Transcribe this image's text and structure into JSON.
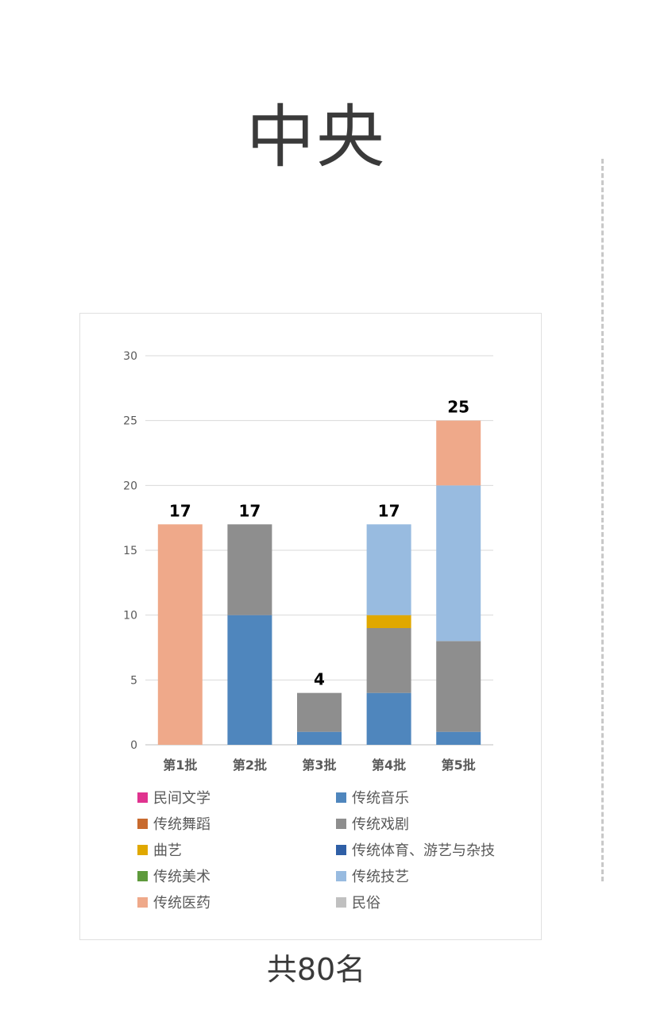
{
  "page": {
    "title": "中央",
    "footer": "共80名"
  },
  "chart_data": {
    "type": "bar",
    "stacked": true,
    "categories": [
      "第1批",
      "第2批",
      "第3批",
      "第4批",
      "第5批"
    ],
    "series": [
      {
        "name": "民间文学",
        "color": "#E0338F",
        "values": [
          0,
          0,
          0,
          0,
          0
        ]
      },
      {
        "name": "传统音乐",
        "color": "#4F86BD",
        "values": [
          0,
          10,
          1,
          4,
          1
        ]
      },
      {
        "name": "传统舞蹈",
        "color": "#C86A2E",
        "values": [
          0,
          0,
          0,
          0,
          0
        ]
      },
      {
        "name": "传统戏剧",
        "color": "#8E8E8E",
        "values": [
          0,
          7,
          3,
          5,
          7
        ]
      },
      {
        "name": "曲艺",
        "color": "#E0A800",
        "values": [
          0,
          0,
          0,
          1,
          0
        ]
      },
      {
        "name": "传统体育、游艺与杂技",
        "color": "#2F5FA6",
        "values": [
          0,
          0,
          0,
          0,
          0
        ]
      },
      {
        "name": "传统美术",
        "color": "#5E9A3C",
        "values": [
          0,
          0,
          0,
          0,
          0
        ]
      },
      {
        "name": "传统技艺",
        "color": "#98BBE0",
        "values": [
          0,
          0,
          0,
          7,
          12
        ]
      },
      {
        "name": "传统医药",
        "color": "#EFA98A",
        "values": [
          17,
          0,
          0,
          0,
          5
        ]
      },
      {
        "name": "民俗",
        "color": "#C0C0C0",
        "values": [
          0,
          0,
          0,
          0,
          0
        ]
      }
    ],
    "totals": [
      17,
      17,
      4,
      17,
      25
    ],
    "ylim": [
      0,
      30
    ],
    "yticks": [
      0,
      5,
      10,
      15,
      20,
      25,
      30
    ],
    "grid": true,
    "legend_position": "bottom",
    "legend_order": [
      "民间文学",
      "传统音乐",
      "传统舞蹈",
      "传统戏剧",
      "曲艺",
      "传统体育、游艺与杂技",
      "传统美术",
      "传统技艺",
      "传统医药",
      "民俗"
    ]
  }
}
